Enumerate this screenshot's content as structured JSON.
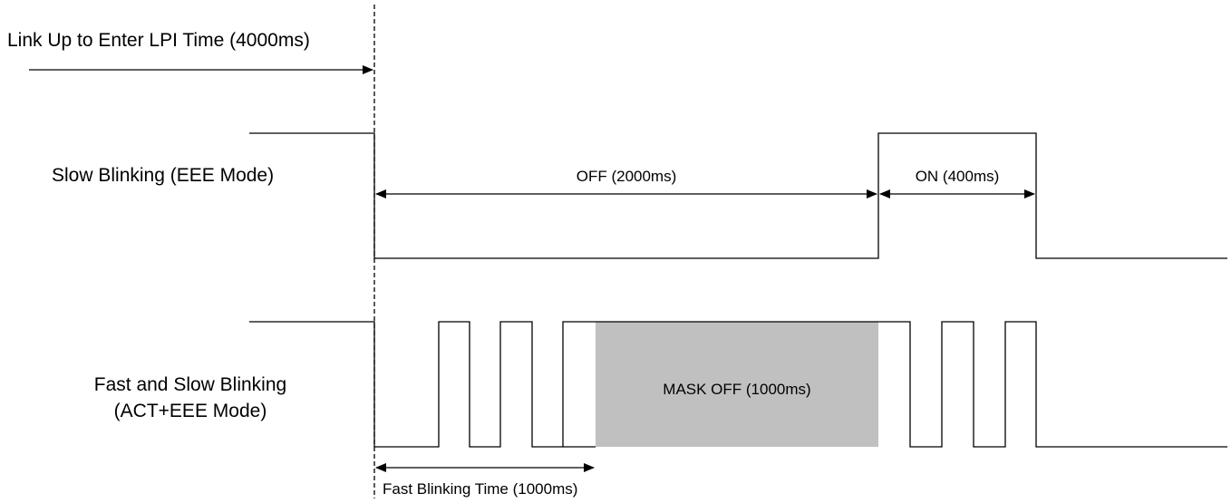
{
  "labels": {
    "link_up": "Link Up to Enter LPI Time (4000ms)",
    "slow_line1": "Slow Blinking (EEE Mode)",
    "fast_line1": "Fast and Slow Blinking",
    "fast_line2": "(ACT+EEE Mode)",
    "off_duration": "OFF (2000ms)",
    "on_duration": "ON (400ms)",
    "mask_off": "MASK OFF (1000ms)",
    "fast_blink_time": "Fast Blinking Time (1000ms)"
  },
  "colors": {
    "line": "#000000",
    "mask_fill": "#c0c0c0",
    "background": "#ffffff"
  }
}
